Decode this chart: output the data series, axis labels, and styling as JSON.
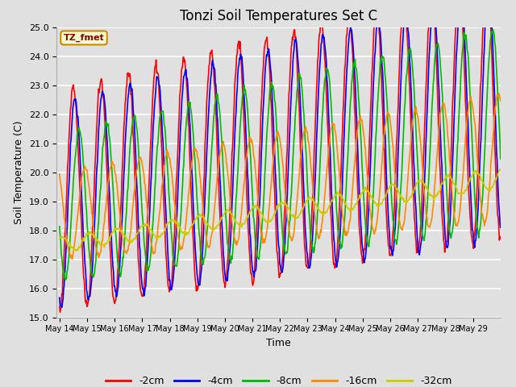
{
  "title": "Tonzi Soil Temperatures Set C",
  "xlabel": "Time",
  "ylabel": "Soil Temperature (C)",
  "ylim": [
    15.0,
    25.0
  ],
  "yticks": [
    15.0,
    16.0,
    17.0,
    18.0,
    19.0,
    20.0,
    21.0,
    22.0,
    23.0,
    24.0,
    25.0
  ],
  "xtick_labels": [
    "May 14",
    "May 15",
    "May 16",
    "May 17",
    "May 18",
    "May 19",
    "May 20",
    "May 21",
    "May 22",
    "May 23",
    "May 24",
    "May 25",
    "May 26",
    "May 27",
    "May 28",
    "May 29"
  ],
  "legend_label": "TZ_fmet",
  "legend_border_color": "#cc8800",
  "legend_bg_color": "#ffffcc",
  "bg_color": "#e0e0e0",
  "plot_bg_color": "#e0e0e0",
  "grid_color": "#ffffff",
  "series_colors": [
    "#ff0000",
    "#0000ff",
    "#00bb00",
    "#ff8800",
    "#cccc00"
  ],
  "series_labels": [
    "-2cm",
    "-4cm",
    "-8cm",
    "-16cm",
    "-32cm"
  ],
  "series_linewidth": 1.2,
  "title_fontsize": 12,
  "label_fontsize": 9,
  "tick_fontsize": 8
}
